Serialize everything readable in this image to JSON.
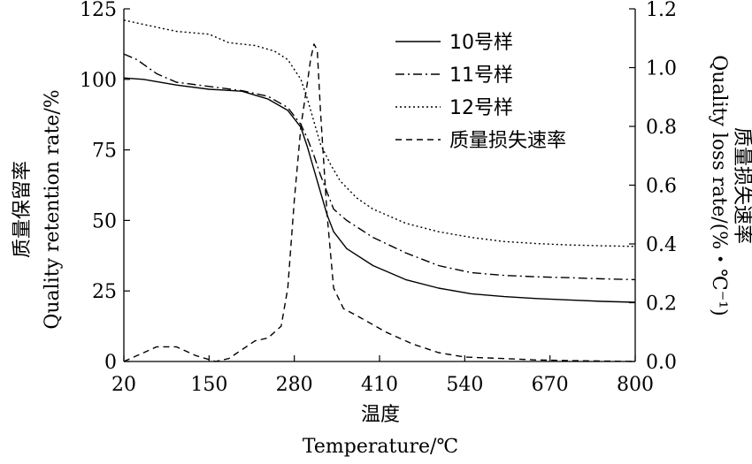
{
  "chart_data": {
    "type": "line",
    "x_axis": {
      "label_cn": "温度",
      "label_en": "Temperature/℃",
      "ticks": [
        20,
        150,
        280,
        410,
        540,
        670,
        800
      ],
      "range": [
        20,
        800
      ]
    },
    "y_left": {
      "label_cn": "质量保留率",
      "label_en": "Quality retention rate/%",
      "ticks": [
        0,
        25,
        50,
        75,
        100,
        125
      ],
      "range": [
        0,
        125
      ]
    },
    "y_right": {
      "label_en": "Quality loss rate/(%・℃⁻¹)",
      "label_cn": "质量损失速率",
      "ticks": [
        "0.0",
        "0.2",
        "0.4",
        "0.6",
        "0.8",
        "1.0",
        "1.2"
      ],
      "range": [
        0,
        1.2
      ]
    },
    "legend_position": "top-right",
    "series": [
      {
        "name": "10号样",
        "axis": "left",
        "style": "solid",
        "points": [
          [
            20,
            100.5
          ],
          [
            50,
            100
          ],
          [
            100,
            98
          ],
          [
            150,
            96.5
          ],
          [
            200,
            95.8
          ],
          [
            240,
            93
          ],
          [
            270,
            89
          ],
          [
            290,
            83
          ],
          [
            300,
            76
          ],
          [
            310,
            68
          ],
          [
            320,
            60
          ],
          [
            330,
            52
          ],
          [
            340,
            46
          ],
          [
            360,
            40
          ],
          [
            400,
            34
          ],
          [
            450,
            29
          ],
          [
            500,
            26
          ],
          [
            550,
            24
          ],
          [
            600,
            23
          ],
          [
            650,
            22.3
          ],
          [
            700,
            21.8
          ],
          [
            750,
            21.3
          ],
          [
            800,
            21
          ]
        ]
      },
      {
        "name": "11号样",
        "axis": "left",
        "style": "dashdot",
        "points": [
          [
            20,
            109
          ],
          [
            40,
            107
          ],
          [
            70,
            102
          ],
          [
            100,
            99
          ],
          [
            150,
            97.5
          ],
          [
            200,
            96
          ],
          [
            240,
            94
          ],
          [
            270,
            90
          ],
          [
            290,
            84
          ],
          [
            300,
            79
          ],
          [
            310,
            73
          ],
          [
            320,
            66
          ],
          [
            330,
            60
          ],
          [
            340,
            54
          ],
          [
            360,
            50
          ],
          [
            400,
            44
          ],
          [
            450,
            38.5
          ],
          [
            500,
            34
          ],
          [
            550,
            31.5
          ],
          [
            600,
            30.5
          ],
          [
            650,
            30
          ],
          [
            700,
            29.7
          ],
          [
            750,
            29.3
          ],
          [
            800,
            29
          ]
        ]
      },
      {
        "name": "12号样",
        "axis": "left",
        "style": "dotted",
        "points": [
          [
            20,
            121
          ],
          [
            60,
            119
          ],
          [
            100,
            117
          ],
          [
            150,
            116
          ],
          [
            180,
            113
          ],
          [
            220,
            112
          ],
          [
            250,
            110
          ],
          [
            270,
            107
          ],
          [
            290,
            100
          ],
          [
            300,
            93
          ],
          [
            310,
            85
          ],
          [
            320,
            77
          ],
          [
            335,
            70
          ],
          [
            350,
            64
          ],
          [
            375,
            58
          ],
          [
            400,
            54
          ],
          [
            450,
            49
          ],
          [
            500,
            46
          ],
          [
            550,
            44
          ],
          [
            600,
            42.5
          ],
          [
            650,
            41.8
          ],
          [
            700,
            41.3
          ],
          [
            750,
            41
          ],
          [
            800,
            40.8
          ]
        ]
      },
      {
        "name": "质量损失速率",
        "axis": "right",
        "style": "dashed",
        "points": [
          [
            20,
            0.0
          ],
          [
            40,
            0.02
          ],
          [
            70,
            0.05
          ],
          [
            100,
            0.05
          ],
          [
            130,
            0.02
          ],
          [
            160,
            0.0
          ],
          [
            180,
            0.01
          ],
          [
            200,
            0.04
          ],
          [
            220,
            0.07
          ],
          [
            240,
            0.08
          ],
          [
            260,
            0.12
          ],
          [
            270,
            0.25
          ],
          [
            280,
            0.55
          ],
          [
            290,
            0.8
          ],
          [
            300,
            0.95
          ],
          [
            305,
            1.03
          ],
          [
            310,
            1.08
          ],
          [
            315,
            1.06
          ],
          [
            320,
            0.85
          ],
          [
            330,
            0.5
          ],
          [
            340,
            0.25
          ],
          [
            355,
            0.18
          ],
          [
            380,
            0.15
          ],
          [
            420,
            0.1
          ],
          [
            460,
            0.06
          ],
          [
            500,
            0.03
          ],
          [
            540,
            0.015
          ],
          [
            600,
            0.01
          ],
          [
            650,
            0.005
          ],
          [
            700,
            0.003
          ],
          [
            800,
            0.0
          ]
        ]
      }
    ]
  }
}
